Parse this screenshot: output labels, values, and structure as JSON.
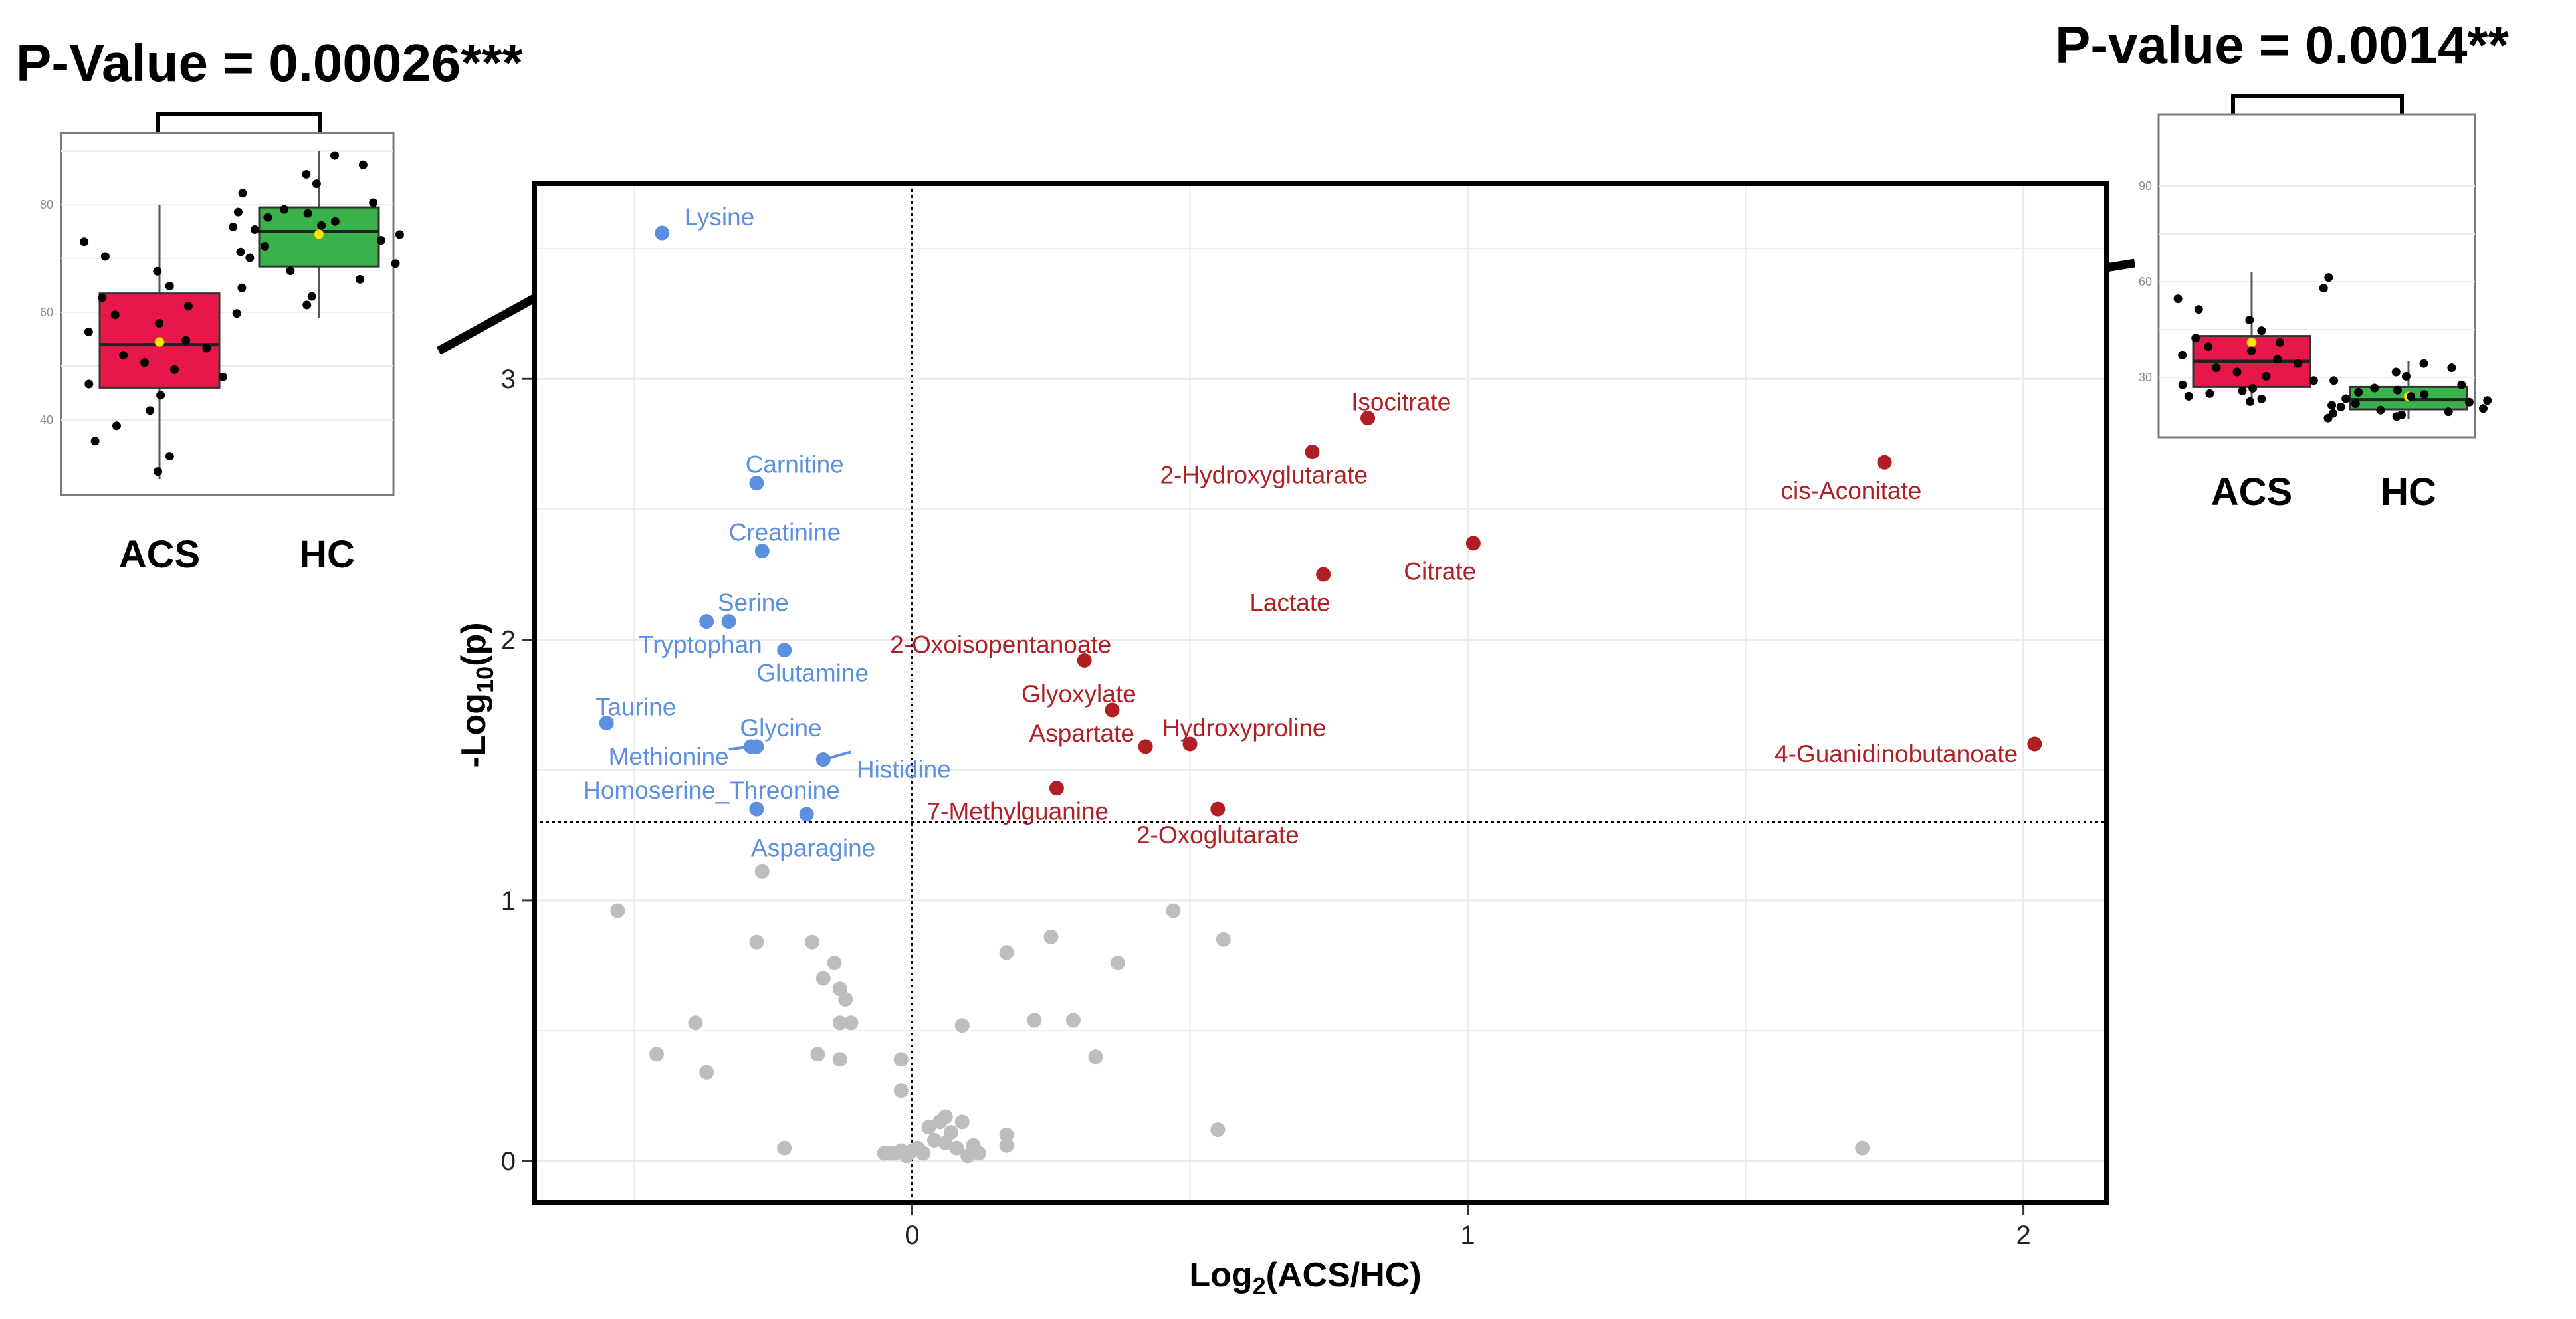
{
  "left_inset": {
    "pvalue_title": "P-Value = 0.00026***",
    "yticks": [
      "40",
      "60",
      "80"
    ],
    "groups": [
      "ACS",
      "HC"
    ],
    "boxes": [
      {
        "group": "ACS",
        "color": "#e8174a",
        "min": 29,
        "q1": 46,
        "median": 54,
        "q3": 63.5,
        "max": 80,
        "mean": 54.5
      },
      {
        "group": "HC",
        "color": "#3ab14a",
        "min": 59,
        "q1": 68.5,
        "median": 75,
        "q3": 79.5,
        "max": 90,
        "mean": 74.5
      }
    ]
  },
  "right_inset": {
    "pvalue_title": "P-value = 0.0014**",
    "yticks": [
      "30",
      "60",
      "90"
    ],
    "groups": [
      "ACS",
      "HC"
    ],
    "boxes": [
      {
        "group": "ACS",
        "color": "#e8174a",
        "min": 22,
        "q1": 27,
        "median": 35,
        "q3": 43,
        "max": 63,
        "mean": 41
      },
      {
        "group": "HC",
        "color": "#3ab14a",
        "min": 17,
        "q1": 20,
        "median": 23,
        "q3": 27,
        "max": 35,
        "mean": 24
      }
    ]
  },
  "chart_data": {
    "type": "scatter",
    "title": "",
    "xlabel_main": "Log",
    "xlabel_sub": "2",
    "xlabel_rest": "(ACS/HC)",
    "ylabel_main": "-Log",
    "ylabel_sub": "10",
    "ylabel_rest": "(p)",
    "xlim": [
      -0.68,
      2.15
    ],
    "ylim": [
      -0.16,
      3.75
    ],
    "xticks": [
      "0",
      "1",
      "2"
    ],
    "yticks": [
      "0",
      "1",
      "2",
      "3"
    ],
    "vline_x": 0,
    "hline_y": 1.3,
    "colors": {
      "down": "#5b8fe0",
      "up": "#b11f24",
      "ns": "#bdbdbd"
    },
    "down_points": [
      {
        "label": "Lysine",
        "x": -0.45,
        "y": 3.56
      },
      {
        "label": "Carnitine",
        "x": -0.28,
        "y": 2.6
      },
      {
        "label": "Creatinine",
        "x": -0.27,
        "y": 2.34
      },
      {
        "label": "Serine",
        "x": -0.33,
        "y": 2.07
      },
      {
        "label": "Tryptophan",
        "x": -0.37,
        "y": 2.07
      },
      {
        "label": "Glutamine",
        "x": -0.23,
        "y": 1.96
      },
      {
        "label": "Taurine",
        "x": -0.55,
        "y": 1.68
      },
      {
        "label": "Glycine",
        "x": -0.28,
        "y": 1.59
      },
      {
        "label": "Methionine",
        "x": -0.29,
        "y": 1.59
      },
      {
        "label": "Histidine",
        "x": -0.16,
        "y": 1.54
      },
      {
        "label": "Homoserine_Threonine",
        "x": -0.28,
        "y": 1.35
      },
      {
        "label": "Asparagine",
        "x": -0.19,
        "y": 1.33
      }
    ],
    "up_points": [
      {
        "label": "Isocitrate",
        "x": 0.82,
        "y": 2.85
      },
      {
        "label": "2-Hydroxyglutarate",
        "x": 0.72,
        "y": 2.72
      },
      {
        "label": "cis-Aconitate",
        "x": 1.75,
        "y": 2.68
      },
      {
        "label": "Citrate",
        "x": 1.01,
        "y": 2.37
      },
      {
        "label": "Lactate",
        "x": 0.74,
        "y": 2.25
      },
      {
        "label": "2-Oxoisopentanoate",
        "x": 0.31,
        "y": 1.92
      },
      {
        "label": "Glyoxylate",
        "x": 0.36,
        "y": 1.73
      },
      {
        "label": "Hydroxyproline",
        "x": 0.5,
        "y": 1.6
      },
      {
        "label": "4-Guanidinobutanoate",
        "x": 2.02,
        "y": 1.6
      },
      {
        "label": "Aspartate",
        "x": 0.42,
        "y": 1.59
      },
      {
        "label": "7-Methylguanine",
        "x": 0.26,
        "y": 1.43
      },
      {
        "label": "2-Oxoglutarate",
        "x": 0.55,
        "y": 1.35
      }
    ],
    "ns_points": [
      [
        -0.53,
        0.96
      ],
      [
        -0.27,
        1.11
      ],
      [
        -0.28,
        0.84
      ],
      [
        -0.18,
        0.84
      ],
      [
        -0.14,
        0.76
      ],
      [
        -0.16,
        0.7
      ],
      [
        -0.13,
        0.66
      ],
      [
        -0.12,
        0.62
      ],
      [
        -0.11,
        0.53
      ],
      [
        -0.13,
        0.53
      ],
      [
        -0.39,
        0.53
      ],
      [
        -0.46,
        0.41
      ],
      [
        -0.37,
        0.34
      ],
      [
        -0.17,
        0.41
      ],
      [
        -0.13,
        0.39
      ],
      [
        -0.23,
        0.05
      ],
      [
        -0.02,
        0.39
      ],
      [
        -0.02,
        0.27
      ],
      [
        0.09,
        0.52
      ],
      [
        0.17,
        0.8
      ],
      [
        0.25,
        0.86
      ],
      [
        0.22,
        0.54
      ],
      [
        0.29,
        0.54
      ],
      [
        0.33,
        0.4
      ],
      [
        0.37,
        0.76
      ],
      [
        0.47,
        0.96
      ],
      [
        0.56,
        0.85
      ],
      [
        0.55,
        0.12
      ],
      [
        1.71,
        0.05
      ],
      [
        0.17,
        0.06
      ],
      [
        0.17,
        0.1
      ],
      [
        -0.05,
        0.03
      ],
      [
        -0.04,
        0.03
      ],
      [
        -0.03,
        0.03
      ],
      [
        -0.02,
        0.04
      ],
      [
        -0.01,
        0.02
      ],
      [
        0.0,
        0.04
      ],
      [
        0.01,
        0.05
      ],
      [
        0.02,
        0.03
      ],
      [
        0.03,
        0.13
      ],
      [
        0.04,
        0.08
      ],
      [
        0.05,
        0.15
      ],
      [
        0.06,
        0.07
      ],
      [
        0.06,
        0.17
      ],
      [
        0.07,
        0.11
      ],
      [
        0.08,
        0.05
      ],
      [
        0.09,
        0.15
      ],
      [
        0.1,
        0.02
      ],
      [
        0.11,
        0.06
      ],
      [
        0.12,
        0.03
      ]
    ]
  }
}
